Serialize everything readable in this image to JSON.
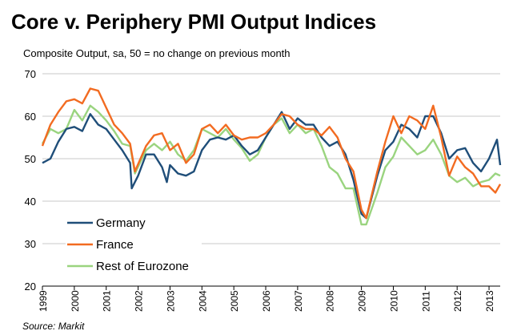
{
  "chart_data": {
    "type": "line",
    "title": "Core v. Periphery PMI Output Indices",
    "subtitle": "Composite Output, sa, 50 = no change on previous month",
    "source": "Source: Markit",
    "xlabel": "",
    "ylabel": "",
    "xlim": [
      1999,
      2013.35
    ],
    "ylim": [
      20,
      70
    ],
    "yticks": [
      20,
      30,
      40,
      50,
      60,
      70
    ],
    "xticks": [
      "1999",
      "2000",
      "2001",
      "2002",
      "2003",
      "2004",
      "2005",
      "2006",
      "2007",
      "2008",
      "2009",
      "2010",
      "2011",
      "2012",
      "2013"
    ],
    "grid": "horizontal",
    "legend_position": "bottom-left",
    "series": [
      {
        "name": "Germany",
        "color": "#1f4e79",
        "x": [
          1999,
          1999.25,
          1999.5,
          1999.75,
          2000,
          2000.25,
          2000.5,
          2000.75,
          2001,
          2001.25,
          2001.5,
          2001.75,
          2001.8,
          2002,
          2002.25,
          2002.5,
          2002.75,
          2002.9,
          2003,
          2003.25,
          2003.5,
          2003.75,
          2004,
          2004.25,
          2004.5,
          2004.75,
          2005,
          2005.25,
          2005.5,
          2005.75,
          2006,
          2006.25,
          2006.5,
          2006.75,
          2007,
          2007.25,
          2007.5,
          2007.75,
          2008,
          2008.25,
          2008.5,
          2008.75,
          2009,
          2009.15,
          2009.5,
          2009.75,
          2010,
          2010.25,
          2010.5,
          2010.75,
          2011,
          2011.25,
          2011.5,
          2011.75,
          2012,
          2012.25,
          2012.5,
          2012.75,
          2013,
          2013.25,
          2013.35
        ],
        "y": [
          49,
          50,
          54,
          57,
          57.5,
          56.5,
          60.5,
          58,
          57,
          54.5,
          52,
          49,
          43,
          46,
          51,
          51,
          48,
          44.5,
          48.5,
          46.5,
          46,
          47,
          52,
          54.5,
          55,
          54.5,
          55.5,
          53,
          51,
          52,
          55,
          58,
          61,
          57,
          59.5,
          58,
          58,
          55,
          53,
          54,
          51,
          45,
          37,
          36,
          46,
          52,
          54,
          58,
          57,
          55,
          60,
          60,
          56,
          50,
          52,
          52.5,
          49,
          47,
          50,
          54.5,
          48.5
        ]
      },
      {
        "name": "France",
        "color": "#f26b21",
        "x": [
          1999,
          1999.25,
          1999.5,
          1999.75,
          2000,
          2000.25,
          2000.5,
          2000.75,
          2001,
          2001.25,
          2001.5,
          2001.75,
          2001.9,
          2002.25,
          2002.5,
          2002.75,
          2003,
          2003.25,
          2003.5,
          2003.75,
          2004,
          2004.25,
          2004.5,
          2004.75,
          2005,
          2005.25,
          2005.5,
          2005.75,
          2006,
          2006.25,
          2006.5,
          2006.75,
          2007,
          2007.25,
          2007.5,
          2007.75,
          2008,
          2008.25,
          2008.5,
          2008.75,
          2009,
          2009.15,
          2009.5,
          2009.75,
          2010,
          2010.25,
          2010.5,
          2010.75,
          2011,
          2011.25,
          2011.5,
          2011.75,
          2012,
          2012.25,
          2012.5,
          2012.75,
          2013,
          2013.2,
          2013.35
        ],
        "y": [
          53,
          58,
          61,
          63.5,
          64,
          63,
          66.5,
          66,
          62,
          58,
          56,
          53.5,
          47,
          53,
          55.5,
          56,
          52,
          53.5,
          49,
          51,
          57,
          58,
          56,
          58,
          55.5,
          54.5,
          55,
          55,
          56,
          58,
          60.5,
          60,
          58,
          57,
          57,
          55.5,
          57.5,
          55,
          50,
          47,
          38,
          36,
          47,
          54,
          60,
          56,
          60,
          59,
          57,
          62.5,
          55,
          46,
          50.5,
          48,
          46.5,
          43.5,
          43.5,
          42,
          44
        ]
      },
      {
        "name": "Rest of Eurozone",
        "color": "#9ad47f",
        "x": [
          1999,
          1999.25,
          1999.5,
          1999.75,
          2000,
          2000.25,
          2000.5,
          2000.75,
          2001,
          2001.25,
          2001.5,
          2001.75,
          2001.9,
          2002.25,
          2002.5,
          2002.75,
          2003,
          2003.25,
          2003.5,
          2003.75,
          2004,
          2004.25,
          2004.5,
          2004.75,
          2005,
          2005.25,
          2005.5,
          2005.75,
          2006,
          2006.25,
          2006.5,
          2006.75,
          2007,
          2007.25,
          2007.5,
          2007.75,
          2008,
          2008.25,
          2008.5,
          2008.75,
          2009,
          2009.15,
          2009.5,
          2009.75,
          2010,
          2010.25,
          2010.5,
          2010.75,
          2011,
          2011.25,
          2011.5,
          2011.75,
          2012,
          2012.25,
          2012.5,
          2012.75,
          2013,
          2013.2,
          2013.35
        ],
        "y": [
          53.5,
          57,
          56,
          57,
          61.5,
          59,
          62.5,
          61,
          59,
          56.5,
          53.5,
          53,
          46.5,
          52,
          53.5,
          52,
          54,
          51,
          49.5,
          52,
          57,
          56,
          55,
          57,
          54.5,
          52.5,
          49.5,
          51,
          55,
          58,
          59.5,
          56,
          58,
          56,
          57,
          53,
          48,
          46.5,
          43,
          43,
          34.5,
          34.5,
          42,
          48,
          50.5,
          55,
          53,
          51,
          52,
          54.5,
          51,
          46,
          44.5,
          45.5,
          43.5,
          44.5,
          45,
          46.5,
          46
        ]
      }
    ]
  }
}
